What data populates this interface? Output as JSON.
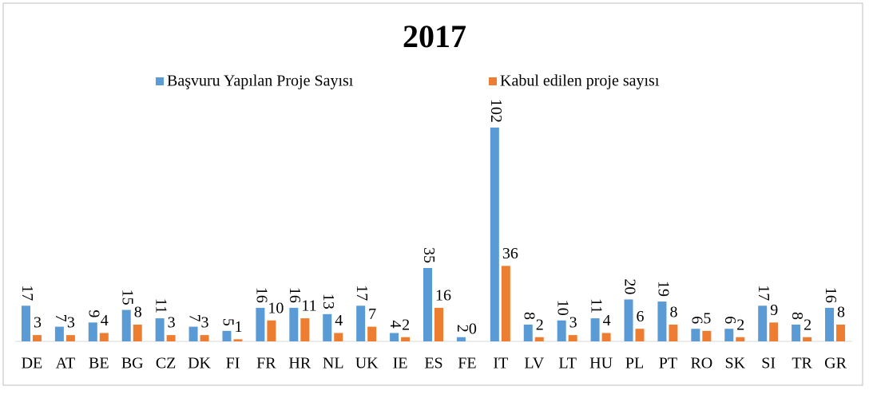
{
  "chart_data": {
    "type": "bar",
    "title": "2017",
    "categories": [
      "DE",
      "AT",
      "BE",
      "BG",
      "CZ",
      "DK",
      "FI",
      "FR",
      "HR",
      "NL",
      "UK",
      "IE",
      "ES",
      "FE",
      "IT",
      "LV",
      "LT",
      "HU",
      "PL",
      "PT",
      "RO",
      "SK",
      "SI",
      "TR",
      "GR"
    ],
    "series": [
      {
        "name": "Başvuru Yapılan Proje Sayısı",
        "color": "#5b9bd5",
        "values": [
          17,
          7,
          9,
          15,
          11,
          7,
          5,
          16,
          16,
          13,
          17,
          4,
          35,
          2,
          102,
          8,
          10,
          11,
          20,
          19,
          6,
          6,
          17,
          8,
          16
        ]
      },
      {
        "name": "Kabul edilen proje sayısı",
        "color": "#ed7d31",
        "values": [
          3,
          3,
          4,
          8,
          3,
          3,
          1,
          10,
          11,
          4,
          7,
          2,
          16,
          0,
          36,
          2,
          3,
          4,
          6,
          8,
          5,
          2,
          9,
          2,
          8
        ]
      }
    ],
    "ylim": [
      0,
      105
    ]
  }
}
